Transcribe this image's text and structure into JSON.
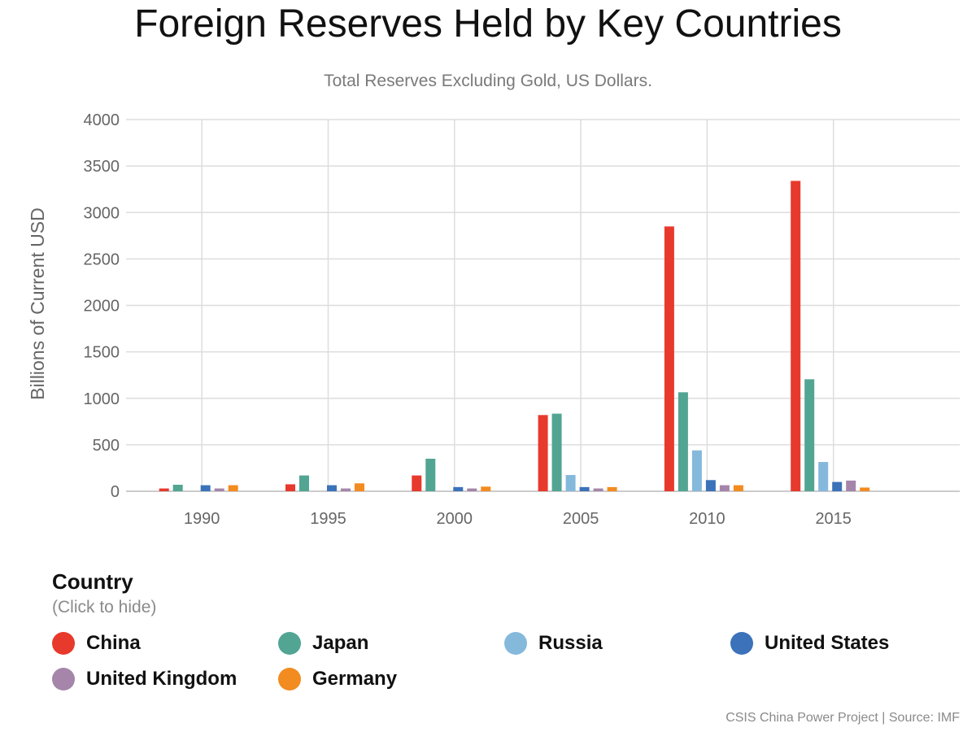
{
  "title": "Foreign Reserves Held by Key Countries",
  "subtitle": "Total Reserves Excluding Gold, US Dollars.",
  "legend": {
    "title": "Country",
    "hint": "(Click to hide)"
  },
  "source": "CSIS China Power Project | Source: IMF",
  "chart_data": {
    "type": "bar",
    "title": "Foreign Reserves Held by Key Countries",
    "subtitle": "Total Reserves Excluding Gold, US Dollars.",
    "xlabel": "",
    "ylabel": "Billions of Current USD",
    "ylim": [
      0,
      4000
    ],
    "yticks": [
      0,
      500,
      1000,
      1500,
      2000,
      2500,
      3000,
      3500,
      4000
    ],
    "xlim": [
      1987,
      2020
    ],
    "xticks": [
      1990,
      1995,
      2000,
      2005,
      2010,
      2015
    ],
    "grid": true,
    "legend_position": "bottom",
    "years": [
      1990,
      1995,
      2000,
      2005,
      2010,
      2015
    ],
    "series": [
      {
        "name": "China",
        "color": "#e8392d",
        "values": [
          30,
          75,
          170,
          820,
          2850,
          3340
        ]
      },
      {
        "name": "Japan",
        "color": "#52a593",
        "values": [
          70,
          170,
          350,
          835,
          1065,
          1205
        ]
      },
      {
        "name": "Russia",
        "color": "#85b9dc",
        "values": [
          null,
          null,
          null,
          175,
          440,
          315
        ]
      },
      {
        "name": "United States",
        "color": "#3b72b9",
        "values": [
          65,
          65,
          45,
          45,
          120,
          100
        ]
      },
      {
        "name": "United Kingdom",
        "color": "#a585aa",
        "values": [
          30,
          30,
          30,
          30,
          65,
          115
        ]
      },
      {
        "name": "Germany",
        "color": "#f28b20",
        "values": [
          65,
          85,
          50,
          45,
          65,
          40
        ]
      }
    ]
  }
}
